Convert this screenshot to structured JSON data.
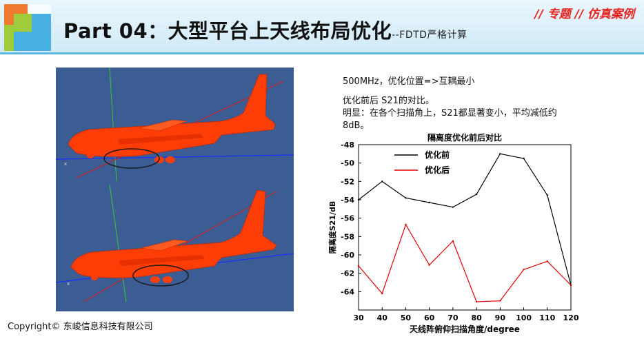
{
  "header": {
    "title": "Part 04：大型平台上天线布局优化",
    "subtitle": "--FDTD严格计算",
    "tag": "// 专题 // 仿真案例",
    "brand_colors": {
      "accent": "#5bb8e0",
      "tag": "#e8231e",
      "plane": "#ff3d06",
      "sim_bg": "#3c5d93"
    }
  },
  "description": {
    "line1": "500MHz，优化位置=>互耦最小",
    "line2": "优化前后 S21的对比。",
    "line3": "明显：在各个扫描角上，S21都显著变小，平均减低约8dB。"
  },
  "chart_data": {
    "type": "line",
    "title": "隔离度优化前后对比",
    "xlabel": "天线阵俯仰扫描角度/degree",
    "ylabel": "隔离度S21/dB",
    "x": [
      30,
      40,
      50,
      60,
      70,
      80,
      90,
      100,
      110,
      120
    ],
    "xlim": [
      30,
      120
    ],
    "ylim": [
      -66,
      -48
    ],
    "xticks": [
      "30",
      "40",
      "50",
      "60",
      "70",
      "80",
      "90",
      "100",
      "110",
      "120"
    ],
    "yticks": [
      "-48",
      "-50",
      "-52",
      "-54",
      "-56",
      "-58",
      "-60",
      "-62",
      "-64"
    ],
    "legend_position": "top-left",
    "grid": false,
    "series": [
      {
        "name": "优化前",
        "color": "#000000",
        "values": [
          -54.0,
          -52.0,
          -53.8,
          -54.3,
          -54.8,
          -53.4,
          -49.0,
          -49.5,
          -53.5,
          -63.3
        ]
      },
      {
        "name": "优化后",
        "color": "#e00000",
        "values": [
          -61.2,
          -64.2,
          -56.7,
          -61.1,
          -58.5,
          -65.1,
          -65.0,
          -61.6,
          -60.7,
          -63.3
        ]
      }
    ]
  },
  "footer": {
    "copyright": "Copyright© 东峻信息科技有限公司"
  }
}
